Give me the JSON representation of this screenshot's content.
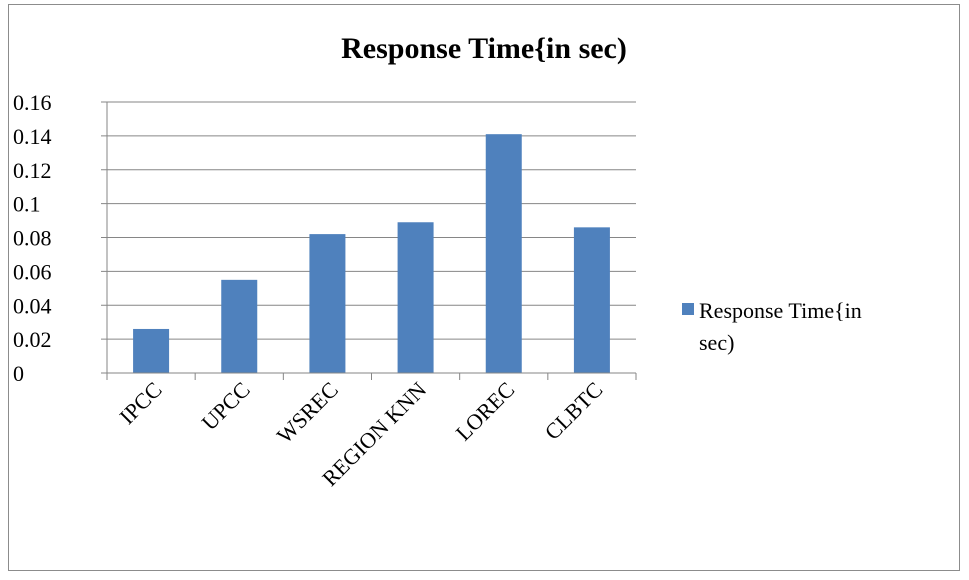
{
  "chart_data": {
    "type": "bar",
    "title": "Response Time{in sec)",
    "categories": [
      "IPCC",
      "UPCC",
      "WSREC",
      "REGION KNN",
      "LOREC",
      "CLBTC"
    ],
    "series": [
      {
        "name": "Response Time{in sec)",
        "values": [
          0.026,
          0.055,
          0.082,
          0.089,
          0.141,
          0.086
        ],
        "color": "#4f81bd"
      }
    ],
    "yticks": [
      "0",
      "0.02",
      "0.04",
      "0.06",
      "0.08",
      "0.1",
      "0.12",
      "0.14",
      "0.16"
    ],
    "ylim": [
      0,
      0.16
    ],
    "grid": true,
    "legend_position": "right",
    "legend_lines": [
      "Response Time{in",
      "sec)"
    ]
  }
}
